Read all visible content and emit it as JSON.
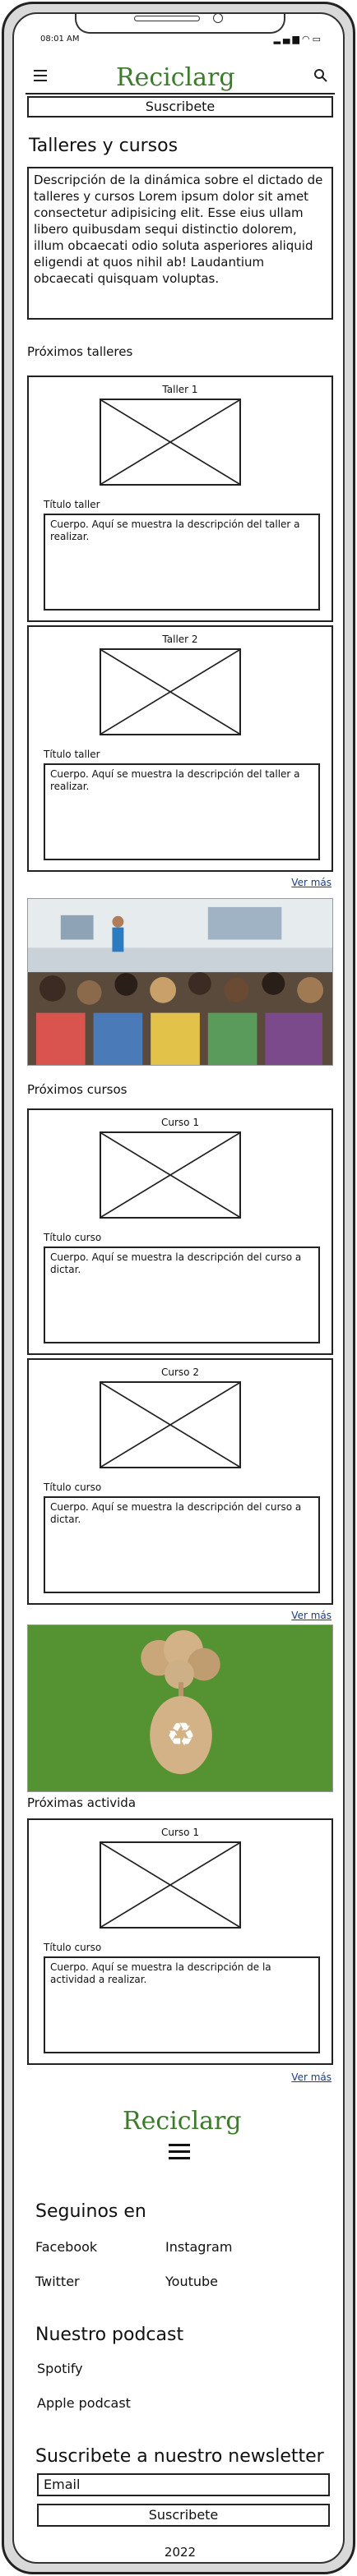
{
  "status_bar": {
    "time": "08:01 AM",
    "icons": [
      "signal-icon",
      "wifi-icon",
      "battery-icon"
    ]
  },
  "header": {
    "logo_text": "Reciclarg",
    "menu_icon": "hamburger-icon",
    "search_icon": "search-icon"
  },
  "subscribe_bar": {
    "label": "Suscribete"
  },
  "page": {
    "title": "Talleres y cursos",
    "intro": "Descripción de la dinámica sobre el dictado de talleres y cursos Lorem ipsum dolor sit amet consectetur adipisicing elit. Esse eius ullam libero quibusdam sequi distinctio dolorem, illum obcaecati odio soluta asperiores aliquid eligendi at quos nihil ab! Laudantium obcaecati quisquam voluptas."
  },
  "talleres": {
    "heading": "Próximos talleres",
    "cards": [
      {
        "caption": "Taller 1",
        "title": "Título taller",
        "body": "Cuerpo. Aquí se muestra la descripción del taller a realizar."
      },
      {
        "caption": "Taller 2",
        "title": "Título taller",
        "body": "Cuerpo. Aquí se muestra la descripción del taller a realizar."
      }
    ],
    "ver_mas": "Ver más"
  },
  "cursos": {
    "heading": "Próximos cursos",
    "cards": [
      {
        "caption": "Curso 1",
        "title": "Título curso",
        "body": "Cuerpo. Aquí se muestra la descripción del curso a dictar."
      },
      {
        "caption": "Curso 2",
        "title": "Título curso",
        "body": "Cuerpo. Aquí se muestra la descripción del curso a dictar."
      }
    ],
    "ver_mas": "Ver más"
  },
  "actividades": {
    "heading": "Próximas activida",
    "cards": [
      {
        "caption": "Curso 1",
        "title": "Título curso",
        "body": "Cuerpo. Aquí se muestra la descripción de la actividad a realizar."
      }
    ],
    "ver_mas": "Ver más"
  },
  "footer": {
    "logo_text": "Reciclarg",
    "social_heading": "Seguinos en",
    "social_links": [
      "Facebook",
      "Instagram",
      "Twitter",
      "Youtube"
    ],
    "podcast_heading": "Nuestro podcast",
    "podcast_links": [
      "Spotify",
      "Apple podcast"
    ],
    "newsletter_heading": "Suscribete a nuestro newsletter",
    "email_placeholder": "Email",
    "newsletter_button": "Suscribete",
    "year": "2022"
  },
  "colors": {
    "brand_green": "#3c7a2c",
    "link_blue": "#1a3c8c",
    "frame": "#222222"
  }
}
